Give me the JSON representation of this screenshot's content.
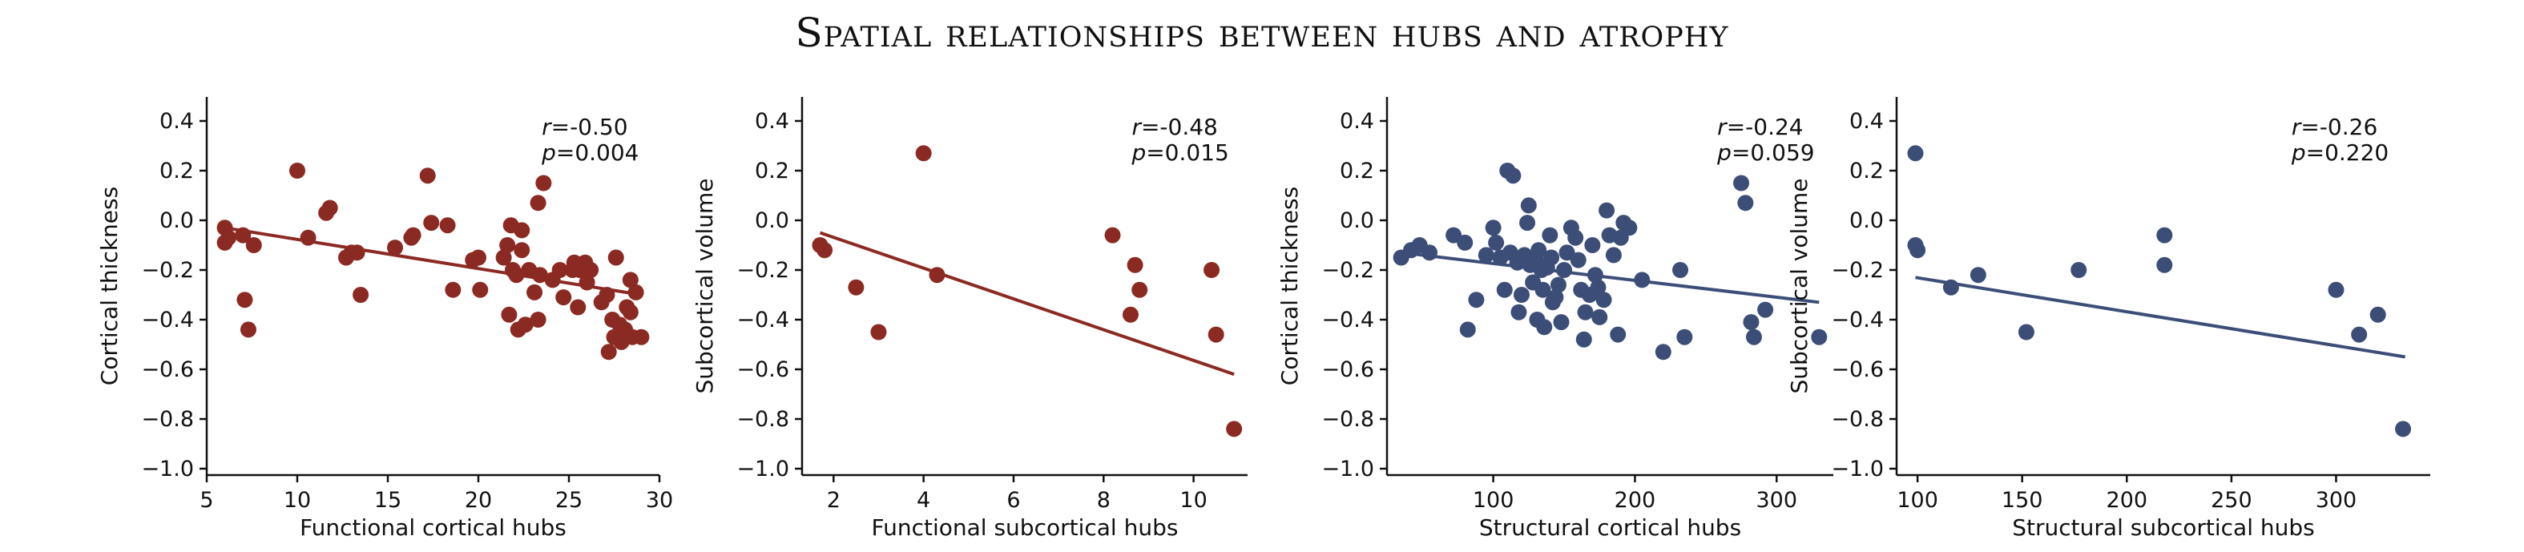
{
  "title": "Spatial relationships between hubs and atrophy",
  "colors": {
    "red": "#8B2A22",
    "blue": "#3C4E77",
    "axis": "#111111"
  },
  "chart_data": [
    {
      "type": "scatter",
      "xlabel": "Functional cortical hubs",
      "ylabel": "Cortical thickness",
      "xlim": [
        5,
        30
      ],
      "ylim": [
        -1.0,
        0.5
      ],
      "xticks": [
        5,
        10,
        15,
        20,
        25,
        30
      ],
      "xtick_labels": [
        "5",
        "10",
        "15",
        "20",
        "25",
        "30"
      ],
      "yticks": [
        0.4,
        0.2,
        0.0,
        -0.2,
        -0.4,
        -0.6,
        -0.8,
        -1.0
      ],
      "ytick_labels": [
        "0.4",
        "0.2",
        "0.0",
        "−0.2",
        "−0.4",
        "−0.6",
        "−0.8",
        "−1.0"
      ],
      "color": "red",
      "stat_r": "=-0.50",
      "stat_p": "=0.004",
      "fit": [
        [
          6,
          -0.03
        ],
        [
          29,
          -0.3
        ]
      ],
      "points": [
        [
          6.0,
          -0.03
        ],
        [
          6.2,
          -0.07
        ],
        [
          6.0,
          -0.09
        ],
        [
          7.0,
          -0.06
        ],
        [
          7.6,
          -0.1
        ],
        [
          7.1,
          -0.32
        ],
        [
          7.3,
          -0.44
        ],
        [
          10.0,
          0.2
        ],
        [
          10.6,
          -0.07
        ],
        [
          11.6,
          0.03
        ],
        [
          11.8,
          0.05
        ],
        [
          12.7,
          -0.15
        ],
        [
          13.0,
          -0.13
        ],
        [
          13.3,
          -0.13
        ],
        [
          13.5,
          -0.3
        ],
        [
          15.4,
          -0.11
        ],
        [
          16.3,
          -0.07
        ],
        [
          16.4,
          -0.06
        ],
        [
          17.2,
          0.18
        ],
        [
          17.4,
          -0.01
        ],
        [
          18.3,
          -0.02
        ],
        [
          18.6,
          -0.28
        ],
        [
          19.7,
          -0.16
        ],
        [
          20.0,
          -0.15
        ],
        [
          20.1,
          -0.28
        ],
        [
          21.4,
          -0.15
        ],
        [
          21.6,
          -0.1
        ],
        [
          21.7,
          -0.38
        ],
        [
          21.8,
          -0.02
        ],
        [
          21.9,
          -0.2
        ],
        [
          22.1,
          -0.22
        ],
        [
          22.2,
          -0.44
        ],
        [
          22.4,
          -0.04
        ],
        [
          22.4,
          -0.12
        ],
        [
          22.6,
          -0.42
        ],
        [
          22.8,
          -0.2
        ],
        [
          23.1,
          -0.29
        ],
        [
          23.3,
          0.07
        ],
        [
          23.4,
          -0.22
        ],
        [
          23.6,
          0.15
        ],
        [
          23.3,
          -0.4
        ],
        [
          24.1,
          -0.24
        ],
        [
          24.5,
          -0.2
        ],
        [
          24.7,
          -0.31
        ],
        [
          25.2,
          -0.2
        ],
        [
          25.3,
          -0.17
        ],
        [
          25.5,
          -0.35
        ],
        [
          25.6,
          -0.2
        ],
        [
          25.9,
          -0.17
        ],
        [
          26.0,
          -0.25
        ],
        [
          26.2,
          -0.2
        ],
        [
          26.8,
          -0.33
        ],
        [
          27.1,
          -0.3
        ],
        [
          27.2,
          -0.53
        ],
        [
          27.4,
          -0.4
        ],
        [
          27.5,
          -0.47
        ],
        [
          27.6,
          -0.15
        ],
        [
          27.8,
          -0.42
        ],
        [
          27.9,
          -0.49
        ],
        [
          28.1,
          -0.44
        ],
        [
          28.2,
          -0.35
        ],
        [
          28.4,
          -0.37
        ],
        [
          28.4,
          -0.24
        ],
        [
          28.5,
          -0.47
        ],
        [
          28.7,
          -0.29
        ],
        [
          29.0,
          -0.47
        ]
      ]
    },
    {
      "type": "scatter",
      "xlabel": "Functional subcortical hubs",
      "ylabel": "Subcortical volume",
      "xlim": [
        1.3,
        11.2
      ],
      "ylim": [
        -1.0,
        0.5
      ],
      "xticks": [
        2,
        4,
        6,
        8,
        10
      ],
      "xtick_labels": [
        "2",
        "4",
        "6",
        "8",
        "10"
      ],
      "yticks": [
        0.4,
        0.2,
        0.0,
        -0.2,
        -0.4,
        -0.6,
        -0.8,
        -1.0
      ],
      "ytick_labels": [
        "0.4",
        "0.2",
        "0.0",
        "−0.2",
        "−0.4",
        "−0.6",
        "−0.8",
        "−1.0"
      ],
      "color": "red",
      "stat_r": "=-0.48",
      "stat_p": "=0.015",
      "fit": [
        [
          1.7,
          -0.05
        ],
        [
          10.9,
          -0.62
        ]
      ],
      "points": [
        [
          1.7,
          -0.1
        ],
        [
          1.8,
          -0.12
        ],
        [
          2.5,
          -0.27
        ],
        [
          3.0,
          -0.45
        ],
        [
          4.0,
          0.27
        ],
        [
          4.3,
          -0.22
        ],
        [
          8.2,
          -0.06
        ],
        [
          8.6,
          -0.38
        ],
        [
          8.7,
          -0.18
        ],
        [
          8.8,
          -0.28
        ],
        [
          10.4,
          -0.2
        ],
        [
          10.5,
          -0.46
        ],
        [
          10.9,
          -0.84
        ]
      ]
    },
    {
      "type": "scatter",
      "xlabel": "Structural cortical hubs",
      "ylabel": "Cortical thickness",
      "xlim": [
        25,
        340
      ],
      "ylim": [
        -1.0,
        0.5
      ],
      "xticks": [
        100,
        200,
        300
      ],
      "xtick_labels": [
        "100",
        "200",
        "300"
      ],
      "yticks": [
        0.4,
        0.2,
        0.0,
        -0.2,
        -0.4,
        -0.6,
        -0.8,
        -1.0
      ],
      "ytick_labels": [
        "0.4",
        "0.2",
        "0.0",
        "−0.2",
        "−0.4",
        "−0.6",
        "−0.8",
        "−1.0"
      ],
      "color": "blue",
      "stat_r": "=-0.24",
      "stat_p": "=0.059",
      "fit": [
        [
          35,
          -0.13
        ],
        [
          330,
          -0.33
        ]
      ],
      "points": [
        [
          35,
          -0.15
        ],
        [
          42,
          -0.12
        ],
        [
          48,
          -0.1
        ],
        [
          55,
          -0.13
        ],
        [
          72,
          -0.06
        ],
        [
          80,
          -0.09
        ],
        [
          82,
          -0.44
        ],
        [
          88,
          -0.32
        ],
        [
          95,
          -0.14
        ],
        [
          100,
          -0.03
        ],
        [
          102,
          -0.09
        ],
        [
          105,
          -0.15
        ],
        [
          108,
          -0.28
        ],
        [
          110,
          0.2
        ],
        [
          112,
          -0.13
        ],
        [
          114,
          0.18
        ],
        [
          117,
          -0.17
        ],
        [
          118,
          -0.37
        ],
        [
          120,
          -0.3
        ],
        [
          122,
          -0.14
        ],
        [
          124,
          -0.01
        ],
        [
          125,
          0.06
        ],
        [
          126,
          -0.18
        ],
        [
          128,
          -0.25
        ],
        [
          130,
          -0.16
        ],
        [
          131,
          -0.4
        ],
        [
          132,
          -0.12
        ],
        [
          134,
          -0.2
        ],
        [
          135,
          -0.28
        ],
        [
          136,
          -0.43
        ],
        [
          138,
          -0.19
        ],
        [
          140,
          -0.06
        ],
        [
          141,
          -0.15
        ],
        [
          142,
          -0.33
        ],
        [
          144,
          -0.31
        ],
        [
          146,
          -0.26
        ],
        [
          148,
          -0.41
        ],
        [
          150,
          -0.2
        ],
        [
          152,
          -0.13
        ],
        [
          155,
          -0.03
        ],
        [
          158,
          -0.07
        ],
        [
          160,
          -0.16
        ],
        [
          162,
          -0.28
        ],
        [
          164,
          -0.48
        ],
        [
          165,
          -0.37
        ],
        [
          168,
          -0.3
        ],
        [
          170,
          -0.1
        ],
        [
          172,
          -0.22
        ],
        [
          174,
          -0.27
        ],
        [
          175,
          -0.39
        ],
        [
          178,
          -0.32
        ],
        [
          180,
          0.04
        ],
        [
          182,
          -0.06
        ],
        [
          185,
          -0.14
        ],
        [
          188,
          -0.46
        ],
        [
          190,
          -0.07
        ],
        [
          192,
          -0.01
        ],
        [
          196,
          -0.03
        ],
        [
          205,
          -0.24
        ],
        [
          220,
          -0.53
        ],
        [
          232,
          -0.2
        ],
        [
          235,
          -0.47
        ],
        [
          275,
          0.15
        ],
        [
          278,
          0.07
        ],
        [
          282,
          -0.41
        ],
        [
          284,
          -0.47
        ],
        [
          292,
          -0.36
        ],
        [
          330,
          -0.47
        ]
      ]
    },
    {
      "type": "scatter",
      "xlabel": "Structural subcortical hubs",
      "ylabel": "Subcortical volume",
      "xlim": [
        90,
        345
      ],
      "ylim": [
        -1.0,
        0.5
      ],
      "xticks": [
        100,
        150,
        200,
        250,
        300
      ],
      "xtick_labels": [
        "100",
        "150",
        "200",
        "250",
        "300"
      ],
      "yticks": [
        0.4,
        0.2,
        0.0,
        -0.2,
        -0.4,
        -0.6,
        -0.8,
        -1.0
      ],
      "ytick_labels": [
        "0.4",
        "0.2",
        "0.0",
        "−0.2",
        "−0.4",
        "−0.6",
        "−0.8",
        "−1.0"
      ],
      "color": "blue",
      "stat_r": "=-0.26",
      "stat_p": "=0.220",
      "fit": [
        [
          99,
          -0.23
        ],
        [
          333,
          -0.55
        ]
      ],
      "points": [
        [
          99,
          0.27
        ],
        [
          99,
          -0.1
        ],
        [
          100,
          -0.12
        ],
        [
          116,
          -0.27
        ],
        [
          129,
          -0.22
        ],
        [
          152,
          -0.45
        ],
        [
          177,
          -0.2
        ],
        [
          218,
          -0.06
        ],
        [
          218,
          -0.18
        ],
        [
          300,
          -0.28
        ],
        [
          311,
          -0.46
        ],
        [
          320,
          -0.38
        ],
        [
          332,
          -0.84
        ]
      ]
    }
  ]
}
